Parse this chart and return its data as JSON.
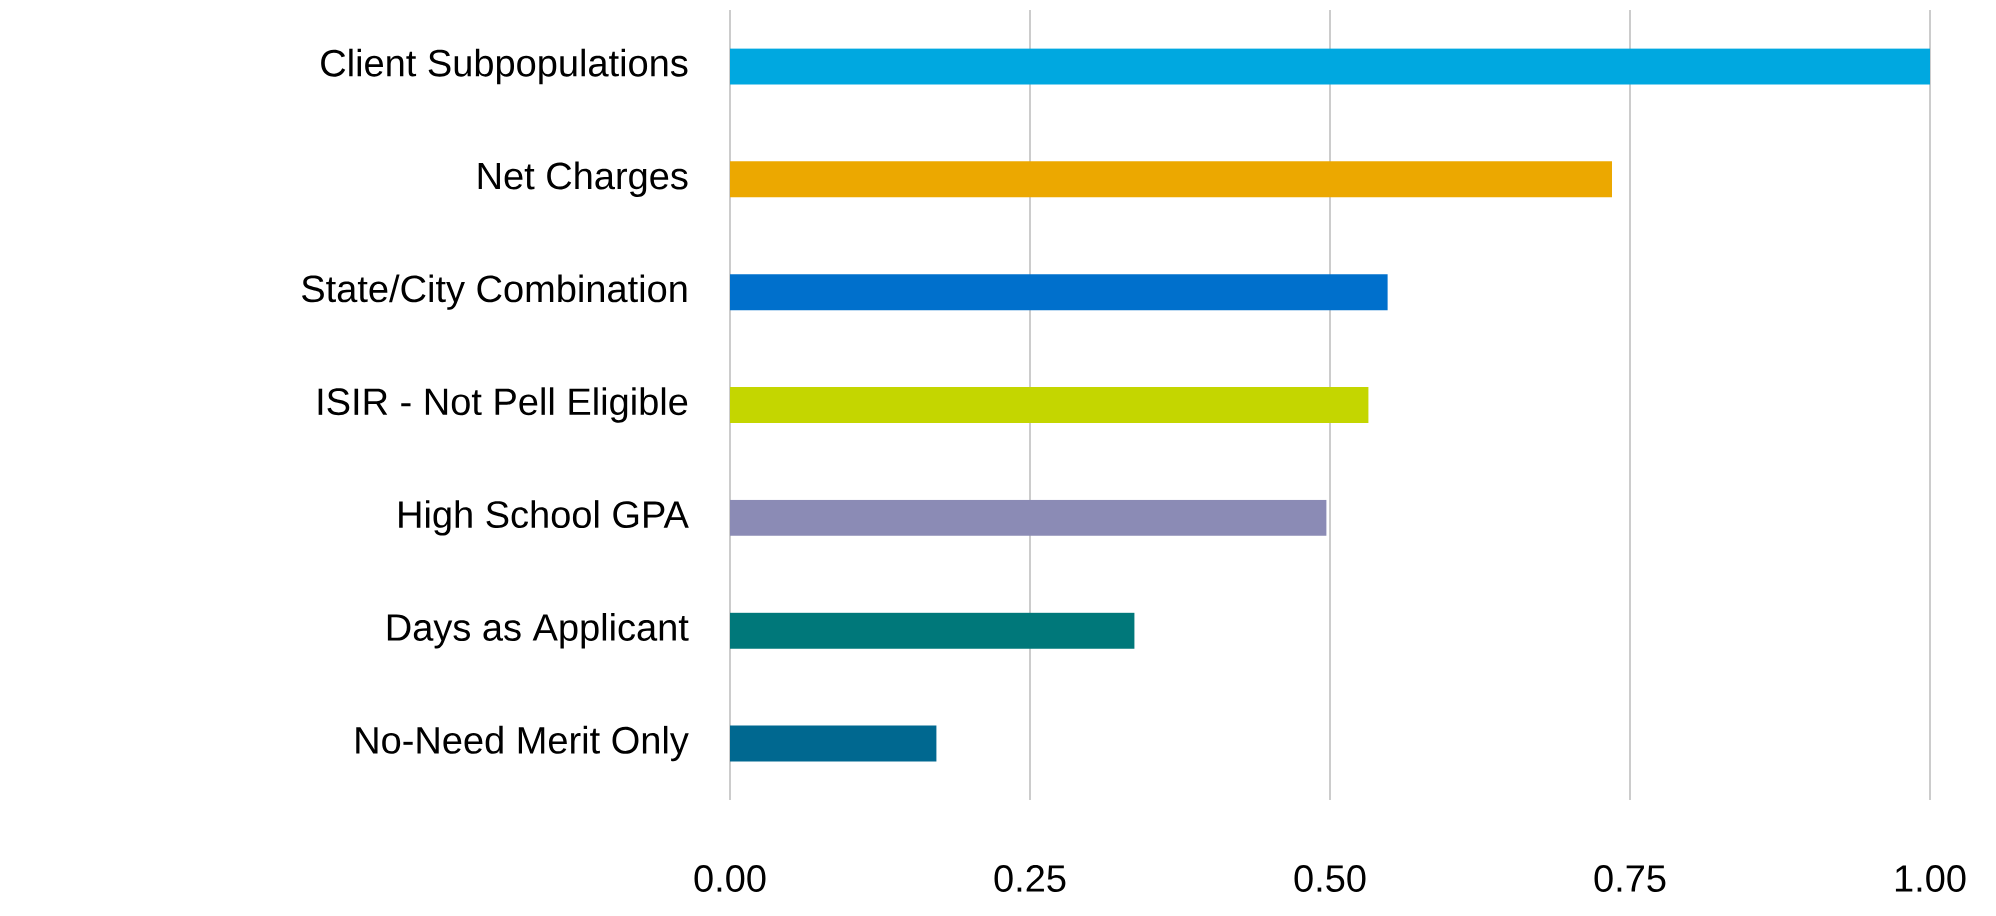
{
  "chart_data": {
    "type": "bar",
    "orientation": "horizontal",
    "categories": [
      "Client Subpopulations",
      "Net Charges",
      "State/City Combination",
      "ISIR - Not Pell Eligible",
      "High School GPA",
      "Days as Applicant",
      "No-Need Merit Only"
    ],
    "values": [
      1.0,
      0.735,
      0.548,
      0.532,
      0.497,
      0.337,
      0.172
    ],
    "colors": [
      "#00a8e0",
      "#eca800",
      "#0070cc",
      "#c4d600",
      "#8b8bb5",
      "#00787a",
      "#006890"
    ],
    "xlim": [
      0,
      1
    ],
    "xticks": [
      {
        "value": 0,
        "label": "0.00"
      },
      {
        "value": 0.25,
        "label": "0.25"
      },
      {
        "value": 0.5,
        "label": "0.50"
      },
      {
        "value": 0.75,
        "label": "0.75"
      },
      {
        "value": 1,
        "label": "1.00"
      }
    ],
    "grid": "x"
  }
}
